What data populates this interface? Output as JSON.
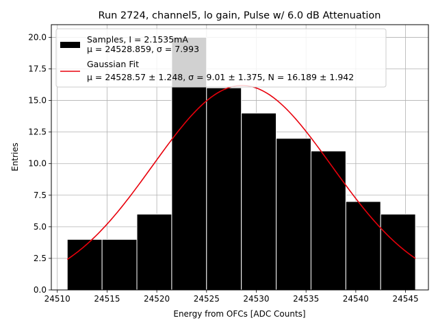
{
  "chart_data": {
    "type": "bar",
    "title": "Run 2724, channel5, lo gain, Pulse w/ 6.0 dB Attenuation",
    "xlabel": "Energy from OFCs [ADC Counts]",
    "ylabel": "Entries",
    "xlim": [
      24509.4,
      24547.3
    ],
    "ylim": [
      0,
      21
    ],
    "grid": true,
    "legend_position": "top-left",
    "xticks": [
      "24510",
      "24515",
      "24520",
      "24525",
      "24530",
      "24535",
      "24540",
      "24545"
    ],
    "yticks": [
      "0.0",
      "2.5",
      "5.0",
      "7.5",
      "10.0",
      "12.5",
      "15.0",
      "17.5",
      "20.0"
    ],
    "bin_edges": [
      24511.0,
      24514.5,
      24518.0,
      24521.5,
      24525.0,
      24528.5,
      24532.0,
      24535.5,
      24539.0,
      24542.5,
      24546.0
    ],
    "values": [
      4,
      4,
      6,
      20,
      16,
      14,
      12,
      11,
      7,
      6
    ],
    "fit": {
      "mu": 24528.57,
      "sigma": 9.01,
      "N": 16.189,
      "x_range": [
        24511.0,
        24546.0
      ]
    },
    "legend": [
      {
        "line1": "Samples, I = 2.1535mA",
        "line2": "μ = 24528.859, σ = 7.993",
        "color": "#000000",
        "kind": "patch"
      },
      {
        "line1": "Gaussian Fit",
        "line2": "μ = 24528.57 ± 1.248, σ = 9.01 ± 1.375, N = 16.189 ± 1.942",
        "color": "#e8000b",
        "kind": "line"
      }
    ]
  }
}
